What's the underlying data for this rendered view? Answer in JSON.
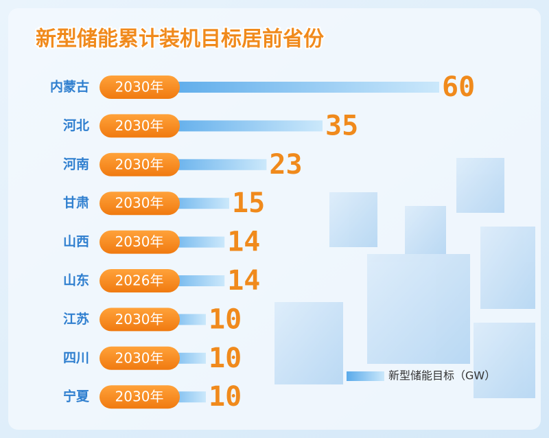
{
  "chart_data": {
    "type": "bar",
    "title": "新型储能累计装机目标居前省份",
    "categories": [
      "内蒙古",
      "河北",
      "河南",
      "甘肃",
      "山西",
      "山东",
      "江苏",
      "四川",
      "宁夏"
    ],
    "year_labels": [
      "2030年",
      "2030年",
      "2030年",
      "2030年",
      "2030年",
      "2026年",
      "2030年",
      "2030年",
      "2030年"
    ],
    "series": [
      {
        "name": "新型储能目标（GW）",
        "color": "#5aaaea",
        "values": [
          60,
          35,
          23,
          15,
          14,
          14,
          10,
          10,
          10
        ]
      }
    ]
  }
}
